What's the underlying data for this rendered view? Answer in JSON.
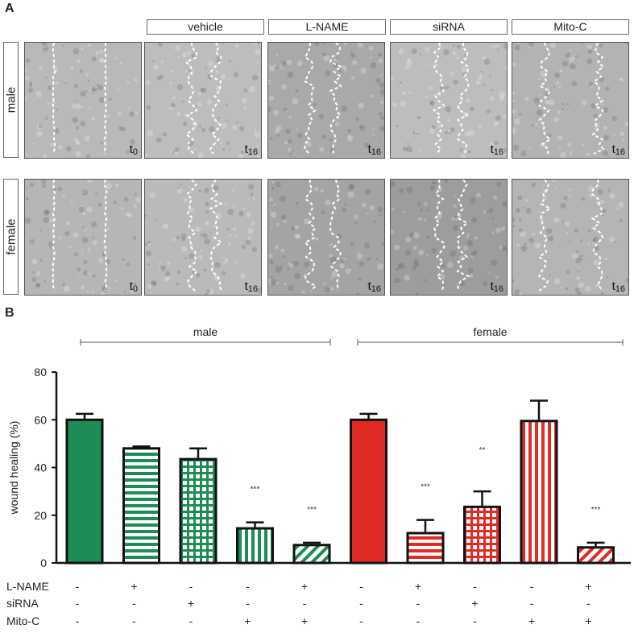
{
  "panel_a": {
    "label": "A",
    "columns": [
      "vehicle",
      "L-NAME",
      "siRNA",
      "Mito-C"
    ],
    "rows": [
      "male",
      "female"
    ],
    "time_labels": {
      "baseline_base": "t",
      "baseline_sub": "0",
      "end_base": "t",
      "end_sub": "16"
    }
  },
  "panel_b": {
    "label": "B",
    "groups": [
      "male",
      "female"
    ]
  },
  "colors": {
    "green": "#1e8c55",
    "red": "#e02b26",
    "axis": "#111111"
  },
  "chart_data": {
    "type": "bar",
    "ylabel": "wound healing (%)",
    "ylim": [
      0,
      80
    ],
    "yticks": [
      0,
      20,
      40,
      60,
      80
    ],
    "bars": [
      {
        "group": "male",
        "value": 60,
        "error": 2.5,
        "pattern": "solid",
        "color": "green",
        "sig": ""
      },
      {
        "group": "male",
        "value": 48,
        "error": 0.8,
        "pattern": "horizontal",
        "color": "green",
        "sig": ""
      },
      {
        "group": "male",
        "value": 43.5,
        "error": 4.5,
        "pattern": "grid",
        "color": "green",
        "sig": ""
      },
      {
        "group": "male",
        "value": 14.5,
        "error": 2.5,
        "pattern": "vertical",
        "color": "green",
        "sig": "***"
      },
      {
        "group": "male",
        "value": 7.5,
        "error": 1,
        "pattern": "diagonal",
        "color": "green",
        "sig": "***"
      },
      {
        "group": "female",
        "value": 60,
        "error": 2.5,
        "pattern": "solid",
        "color": "red",
        "sig": ""
      },
      {
        "group": "female",
        "value": 12.5,
        "error": 5.5,
        "pattern": "horizontal",
        "color": "red",
        "sig": "***"
      },
      {
        "group": "female",
        "value": 23.5,
        "error": 6.5,
        "pattern": "grid",
        "color": "red",
        "sig": "**"
      },
      {
        "group": "female",
        "value": 59.5,
        "error": 8.5,
        "pattern": "vertical",
        "color": "red",
        "sig": ""
      },
      {
        "group": "female",
        "value": 6.5,
        "error": 2,
        "pattern": "diagonal",
        "color": "red",
        "sig": "***"
      }
    ],
    "conditions": [
      {
        "label": "L-NAME",
        "marks": [
          "-",
          "+",
          "-",
          "-",
          "+",
          "-",
          "+",
          "-",
          "-",
          "+"
        ]
      },
      {
        "label": "siRNA",
        "marks": [
          "-",
          "-",
          "+",
          "-",
          "-",
          "-",
          "-",
          "+",
          "-",
          "-"
        ]
      },
      {
        "label": "Mito-C",
        "marks": [
          "-",
          "-",
          "-",
          "+",
          "+",
          "-",
          "-",
          "-",
          "+",
          "+"
        ]
      }
    ]
  }
}
